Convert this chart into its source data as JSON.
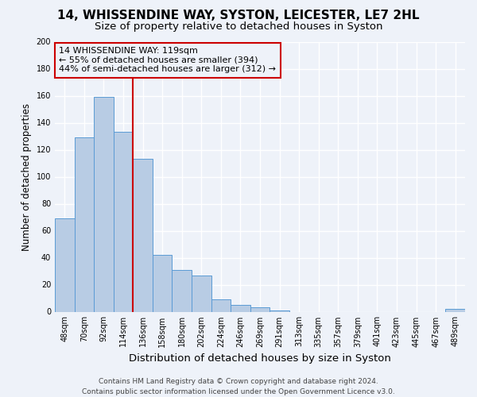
{
  "title": "14, WHISSENDINE WAY, SYSTON, LEICESTER, LE7 2HL",
  "subtitle": "Size of property relative to detached houses in Syston",
  "xlabel": "Distribution of detached houses by size in Syston",
  "ylabel": "Number of detached properties",
  "bar_color": "#b8cce4",
  "bar_edge_color": "#5b9bd5",
  "categories": [
    "48sqm",
    "70sqm",
    "92sqm",
    "114sqm",
    "136sqm",
    "158sqm",
    "180sqm",
    "202sqm",
    "224sqm",
    "246sqm",
    "269sqm",
    "291sqm",
    "313sqm",
    "335sqm",
    "357sqm",
    "379sqm",
    "401sqm",
    "423sqm",
    "445sqm",
    "467sqm",
    "489sqm"
  ],
  "values": [
    69,
    129,
    159,
    133,
    113,
    42,
    31,
    27,
    9,
    5,
    3,
    1,
    0,
    0,
    0,
    0,
    0,
    0,
    0,
    0,
    2
  ],
  "vline_x_index": 3,
  "vline_color": "#cc0000",
  "ylim": [
    0,
    200
  ],
  "yticks": [
    0,
    20,
    40,
    60,
    80,
    100,
    120,
    140,
    160,
    180,
    200
  ],
  "annotation_title": "14 WHISSENDINE WAY: 119sqm",
  "annotation_line1": "← 55% of detached houses are smaller (394)",
  "annotation_line2": "44% of semi-detached houses are larger (312) →",
  "annotation_box_color": "#cc0000",
  "footer_line1": "Contains HM Land Registry data © Crown copyright and database right 2024.",
  "footer_line2": "Contains public sector information licensed under the Open Government Licence v3.0.",
  "background_color": "#eef2f9",
  "grid_color": "#ffffff",
  "title_fontsize": 11,
  "subtitle_fontsize": 9.5,
  "xlabel_fontsize": 9.5,
  "ylabel_fontsize": 8.5,
  "tick_fontsize": 7,
  "annotation_fontsize": 8,
  "footer_fontsize": 6.5
}
